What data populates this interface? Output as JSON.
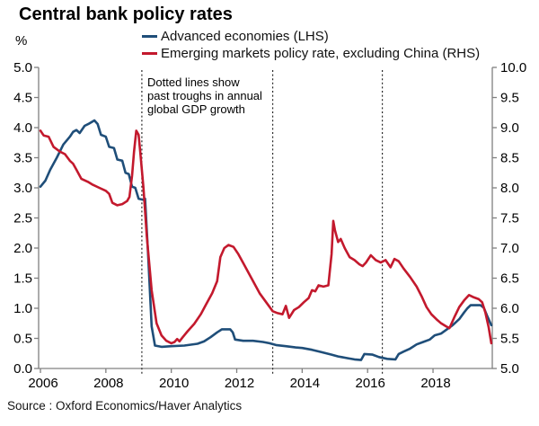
{
  "header": {
    "title": "Central bank policy rates"
  },
  "legend": {
    "items": [
      {
        "label": "Advanced economies (LHS)",
        "color": "#1F4E79"
      },
      {
        "label": "Emerging markets policy rate, excluding China (RHS)",
        "color": "#C3192D"
      }
    ]
  },
  "axis_unit_label": "%",
  "annotation": {
    "lines": [
      "Dotted lines show",
      "past troughs in annual",
      "global GDP growth"
    ]
  },
  "source": "Source : Oxford Economics/Haver Analytics",
  "chart_data": {
    "type": "line",
    "title": "Central bank policy rates",
    "grid": false,
    "legend_position": "top",
    "y_left": {
      "label": "%",
      "range": [
        0,
        5
      ],
      "ticks": [
        5.0,
        4.5,
        4.0,
        3.5,
        3.0,
        2.5,
        2.0,
        1.5,
        1.0,
        0.5,
        0.0
      ]
    },
    "y_right": {
      "label": "",
      "range": [
        5,
        10
      ],
      "ticks": [
        10.0,
        9.5,
        9.0,
        8.5,
        8.0,
        7.5,
        7.0,
        6.5,
        6.0,
        5.5,
        5.0
      ]
    },
    "x_axis": {
      "range": [
        2006,
        2019.85
      ],
      "ticks": [
        2006,
        2008,
        2010,
        2012,
        2014,
        2016,
        2018
      ]
    },
    "gdp_trough_lines": [
      2009.1,
      2013.1,
      2016.45
    ],
    "series": [
      {
        "name": "Advanced economies (LHS)",
        "axis": "left",
        "color": "#1F4E79",
        "points": [
          [
            2006.0,
            3.02
          ],
          [
            2006.15,
            3.12
          ],
          [
            2006.3,
            3.3
          ],
          [
            2006.5,
            3.5
          ],
          [
            2006.7,
            3.72
          ],
          [
            2006.9,
            3.85
          ],
          [
            2007.0,
            3.93
          ],
          [
            2007.1,
            3.96
          ],
          [
            2007.2,
            3.91
          ],
          [
            2007.35,
            4.03
          ],
          [
            2007.5,
            4.07
          ],
          [
            2007.65,
            4.12
          ],
          [
            2007.75,
            4.06
          ],
          [
            2007.85,
            3.88
          ],
          [
            2008.0,
            3.85
          ],
          [
            2008.1,
            3.68
          ],
          [
            2008.25,
            3.66
          ],
          [
            2008.35,
            3.47
          ],
          [
            2008.5,
            3.45
          ],
          [
            2008.6,
            3.25
          ],
          [
            2008.7,
            3.23
          ],
          [
            2008.8,
            3.02
          ],
          [
            2008.9,
            3.0
          ],
          [
            2009.0,
            2.82
          ],
          [
            2009.15,
            2.8
          ],
          [
            2009.2,
            2.82
          ],
          [
            2009.3,
            1.8
          ],
          [
            2009.4,
            0.7
          ],
          [
            2009.5,
            0.38
          ],
          [
            2009.7,
            0.36
          ],
          [
            2010.0,
            0.37
          ],
          [
            2010.4,
            0.38
          ],
          [
            2010.8,
            0.41
          ],
          [
            2011.0,
            0.45
          ],
          [
            2011.2,
            0.52
          ],
          [
            2011.4,
            0.6
          ],
          [
            2011.55,
            0.65
          ],
          [
            2011.8,
            0.65
          ],
          [
            2011.88,
            0.6
          ],
          [
            2011.95,
            0.48
          ],
          [
            2012.2,
            0.46
          ],
          [
            2012.5,
            0.46
          ],
          [
            2012.8,
            0.44
          ],
          [
            2013.0,
            0.42
          ],
          [
            2013.2,
            0.39
          ],
          [
            2013.5,
            0.37
          ],
          [
            2013.8,
            0.35
          ],
          [
            2014.0,
            0.34
          ],
          [
            2014.3,
            0.31
          ],
          [
            2014.6,
            0.27
          ],
          [
            2014.9,
            0.23
          ],
          [
            2015.1,
            0.2
          ],
          [
            2015.4,
            0.17
          ],
          [
            2015.6,
            0.15
          ],
          [
            2015.8,
            0.14
          ],
          [
            2015.9,
            0.24
          ],
          [
            2016.15,
            0.23
          ],
          [
            2016.35,
            0.19
          ],
          [
            2016.6,
            0.16
          ],
          [
            2016.85,
            0.15
          ],
          [
            2016.95,
            0.24
          ],
          [
            2017.1,
            0.28
          ],
          [
            2017.3,
            0.33
          ],
          [
            2017.5,
            0.4
          ],
          [
            2017.7,
            0.44
          ],
          [
            2017.9,
            0.48
          ],
          [
            2018.05,
            0.55
          ],
          [
            2018.25,
            0.58
          ],
          [
            2018.45,
            0.66
          ],
          [
            2018.6,
            0.72
          ],
          [
            2018.8,
            0.82
          ],
          [
            2018.95,
            0.93
          ],
          [
            2019.05,
            1.0
          ],
          [
            2019.15,
            1.05
          ],
          [
            2019.45,
            1.05
          ],
          [
            2019.55,
            1.01
          ],
          [
            2019.65,
            0.88
          ],
          [
            2019.78,
            0.72
          ]
        ]
      },
      {
        "name": "Emerging markets policy rate, excluding China (RHS)",
        "axis": "right",
        "color": "#C3192D",
        "points": [
          [
            2006.0,
            8.95
          ],
          [
            2006.1,
            8.87
          ],
          [
            2006.25,
            8.85
          ],
          [
            2006.4,
            8.68
          ],
          [
            2006.6,
            8.6
          ],
          [
            2006.75,
            8.56
          ],
          [
            2006.9,
            8.45
          ],
          [
            2007.0,
            8.4
          ],
          [
            2007.1,
            8.3
          ],
          [
            2007.25,
            8.15
          ],
          [
            2007.45,
            8.1
          ],
          [
            2007.6,
            8.05
          ],
          [
            2007.8,
            8.0
          ],
          [
            2008.0,
            7.95
          ],
          [
            2008.1,
            7.9
          ],
          [
            2008.2,
            7.75
          ],
          [
            2008.35,
            7.71
          ],
          [
            2008.5,
            7.73
          ],
          [
            2008.65,
            7.78
          ],
          [
            2008.72,
            7.85
          ],
          [
            2008.8,
            8.2
          ],
          [
            2008.86,
            8.6
          ],
          [
            2008.93,
            8.95
          ],
          [
            2009.0,
            8.88
          ],
          [
            2009.05,
            8.6
          ],
          [
            2009.15,
            8.0
          ],
          [
            2009.25,
            7.2
          ],
          [
            2009.4,
            6.3
          ],
          [
            2009.55,
            5.75
          ],
          [
            2009.7,
            5.55
          ],
          [
            2009.85,
            5.46
          ],
          [
            2010.0,
            5.42
          ],
          [
            2010.1,
            5.44
          ],
          [
            2010.18,
            5.49
          ],
          [
            2010.25,
            5.45
          ],
          [
            2010.35,
            5.52
          ],
          [
            2010.5,
            5.62
          ],
          [
            2010.7,
            5.74
          ],
          [
            2010.9,
            5.9
          ],
          [
            2011.05,
            6.05
          ],
          [
            2011.25,
            6.25
          ],
          [
            2011.4,
            6.45
          ],
          [
            2011.5,
            6.85
          ],
          [
            2011.62,
            7.0
          ],
          [
            2011.75,
            7.05
          ],
          [
            2011.9,
            7.02
          ],
          [
            2012.05,
            6.9
          ],
          [
            2012.2,
            6.75
          ],
          [
            2012.45,
            6.5
          ],
          [
            2012.7,
            6.25
          ],
          [
            2012.9,
            6.1
          ],
          [
            2013.1,
            5.95
          ],
          [
            2013.25,
            5.92
          ],
          [
            2013.4,
            5.9
          ],
          [
            2013.5,
            6.04
          ],
          [
            2013.6,
            5.84
          ],
          [
            2013.75,
            5.97
          ],
          [
            2013.9,
            6.02
          ],
          [
            2014.05,
            6.1
          ],
          [
            2014.2,
            6.17
          ],
          [
            2014.3,
            6.3
          ],
          [
            2014.4,
            6.28
          ],
          [
            2014.5,
            6.38
          ],
          [
            2014.65,
            6.36
          ],
          [
            2014.8,
            6.38
          ],
          [
            2014.9,
            6.9
          ],
          [
            2014.95,
            7.45
          ],
          [
            2015.0,
            7.3
          ],
          [
            2015.1,
            7.1
          ],
          [
            2015.18,
            7.15
          ],
          [
            2015.3,
            7.0
          ],
          [
            2015.45,
            6.85
          ],
          [
            2015.6,
            6.8
          ],
          [
            2015.75,
            6.73
          ],
          [
            2015.85,
            6.7
          ],
          [
            2015.95,
            6.76
          ],
          [
            2016.1,
            6.88
          ],
          [
            2016.25,
            6.8
          ],
          [
            2016.4,
            6.76
          ],
          [
            2016.55,
            6.8
          ],
          [
            2016.7,
            6.68
          ],
          [
            2016.82,
            6.82
          ],
          [
            2016.95,
            6.78
          ],
          [
            2017.1,
            6.66
          ],
          [
            2017.3,
            6.52
          ],
          [
            2017.5,
            6.36
          ],
          [
            2017.65,
            6.2
          ],
          [
            2017.8,
            6.02
          ],
          [
            2017.95,
            5.9
          ],
          [
            2018.1,
            5.82
          ],
          [
            2018.25,
            5.75
          ],
          [
            2018.4,
            5.7
          ],
          [
            2018.5,
            5.67
          ],
          [
            2018.65,
            5.85
          ],
          [
            2018.8,
            6.02
          ],
          [
            2018.95,
            6.13
          ],
          [
            2019.1,
            6.22
          ],
          [
            2019.25,
            6.18
          ],
          [
            2019.4,
            6.15
          ],
          [
            2019.5,
            6.1
          ],
          [
            2019.6,
            5.93
          ],
          [
            2019.7,
            5.68
          ],
          [
            2019.78,
            5.42
          ]
        ]
      }
    ]
  }
}
